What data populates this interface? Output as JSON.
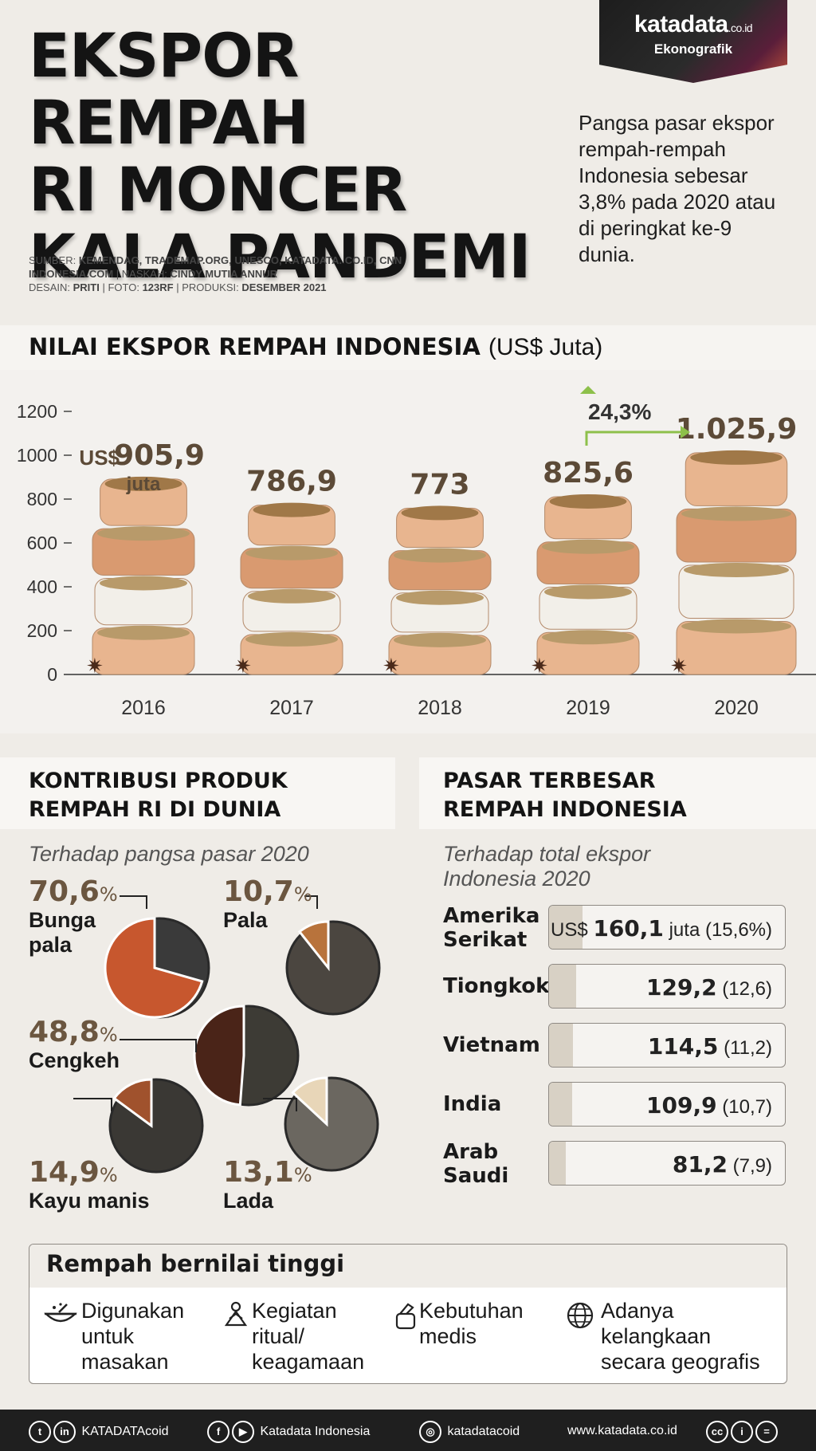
{
  "brand": {
    "logo": "katadata",
    "logo_suffix": ".co.id",
    "section": "Ekonografik"
  },
  "title": [
    "EKSPOR REMPAH",
    "RI MONCER",
    "KALA PANDEMI"
  ],
  "sources": {
    "line1_label": "SUMBER: ",
    "line1_value": "KEMENDAG, TRADEMAP.ORG, UNESCO, KATADATA. CO.ID, CNN INDONESIA.COM",
    "line1_sep": " | NASKAH: ",
    "writer": "CINDY MUTIA ANNUR",
    "line2_label": "DESAIN: ",
    "designer": "PRITI",
    "photo_label": " | FOTO: ",
    "photo": "123RF",
    "prod_label": " | PRODUKSI: ",
    "production": "DESEMBER 2021"
  },
  "lead_text": "Pangsa pasar ekspor rempah-rempah Indonesia sebesar 3,8% pada 2020 atau di peringkat ke-9 dunia.",
  "chart_section": {
    "title": "NILAI EKSPOR REMPAH INDONESIA",
    "unit": "(US$ Juta)"
  },
  "chart_data": {
    "type": "bar",
    "title": "NILAI EKSPOR REMPAH INDONESIA",
    "ylabel": "(US$ Juta)",
    "categories": [
      "2016",
      "2017",
      "2018",
      "2019",
      "2020"
    ],
    "values": [
      905.9,
      786.9,
      773,
      825.6,
      1025.9
    ],
    "value_labels": [
      "905,9",
      "786,9",
      "773",
      "825,6",
      "1.025,9"
    ],
    "first_label_prefix": "US$",
    "first_label_suffix": "juta",
    "ylim": [
      0,
      1200
    ],
    "yticks": [
      0,
      200,
      400,
      600,
      800,
      1000,
      1200
    ],
    "yticklabels": [
      "0",
      "200",
      "400",
      "600",
      "800",
      "1000",
      "1200"
    ],
    "annotation": {
      "from": "2019",
      "to": "2020",
      "text": "24,3%",
      "direction": "up",
      "color": "#8dc04a"
    },
    "bar_colors": [
      "#e8b58f",
      "#f2efe9",
      "#d99a70"
    ]
  },
  "contrib": {
    "title": "KONTRIBUSI PRODUK REMPAH RI DI DUNIA",
    "subtitle": "Terhadap pangsa pasar 2020",
    "items": [
      {
        "value": "70,6",
        "unit": "%",
        "name": "Bunga pala",
        "share": 0.706
      },
      {
        "value": "10,7",
        "unit": "%",
        "name": "Pala",
        "share": 0.107
      },
      {
        "value": "48,8",
        "unit": "%",
        "name": "Cengkeh",
        "share": 0.488
      },
      {
        "value": "14,9",
        "unit": "%",
        "name": "Kayu manis",
        "share": 0.149
      },
      {
        "value": "13,1",
        "unit": "%",
        "name": "Lada",
        "share": 0.131
      }
    ]
  },
  "markets": {
    "title": "PASAR TERBESAR REMPAH INDONESIA",
    "subtitle": "Terhadap total ekspor Indonesia 2020",
    "rows": [
      {
        "country": "Amerika Serikat",
        "prefix": "US$",
        "value": "160,1",
        "suffix": "juta (15,6%)",
        "share": 15.6
      },
      {
        "country": "Tiongkok",
        "prefix": "",
        "value": "129,2",
        "suffix": "(12,6)",
        "share": 12.6
      },
      {
        "country": "Vietnam",
        "prefix": "",
        "value": "114,5",
        "suffix": "(11,2)",
        "share": 11.2
      },
      {
        "country": "India",
        "prefix": "",
        "value": "109,9",
        "suffix": "(10,7)",
        "share": 10.7
      },
      {
        "country": "Arab Saudi",
        "prefix": "",
        "value": "81,2",
        "suffix": "(7,9)",
        "share": 7.9
      }
    ]
  },
  "reasons": {
    "title": "Rempah bernilai tinggi",
    "items": [
      {
        "icon": "cooking-icon",
        "text": "Digunakan untuk masakan"
      },
      {
        "icon": "ritual-icon",
        "text": "Kegiatan ritual/ keagamaan"
      },
      {
        "icon": "medicine-icon",
        "text": "Kebutuhan medis"
      },
      {
        "icon": "globe-icon",
        "text": "Adanya kelangkaan secara geografis"
      }
    ]
  },
  "footer": {
    "handle1": "KATADATAcoid",
    "page": "Katadata Indonesia",
    "insta": "katadatacoid",
    "site": "www.katadata.co.id"
  }
}
